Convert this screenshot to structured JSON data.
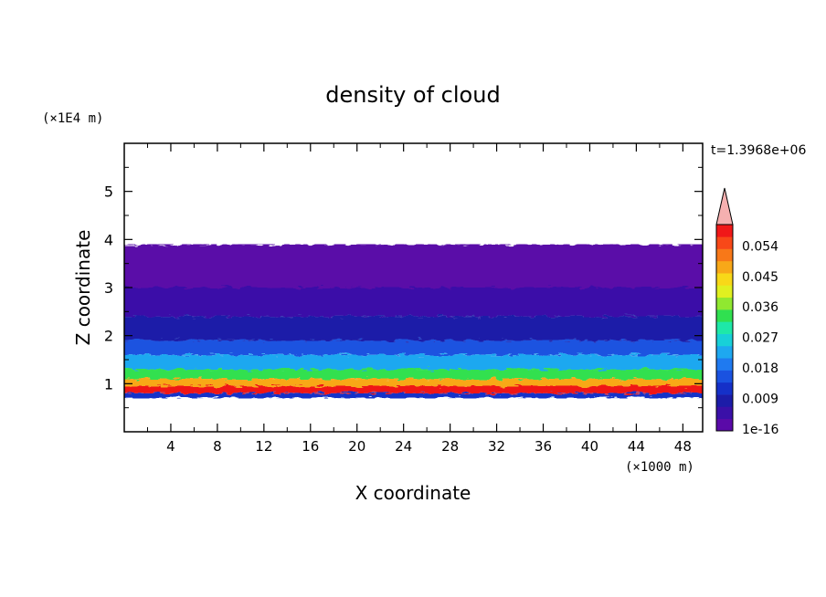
{
  "chart_data": {
    "type": "heatmap",
    "title": "density of cloud",
    "xlabel": "X coordinate",
    "ylabel": "Z coordinate",
    "x_unit": "(×1000 m)",
    "y_unit": "(×1E4 m)",
    "time_label": "t=1.3968e+06",
    "xlim": [
      0,
      49.7
    ],
    "ylim": [
      0,
      6
    ],
    "x_ticks": [
      "4",
      "8",
      "12",
      "16",
      "20",
      "24",
      "28",
      "32",
      "36",
      "40",
      "44",
      "48"
    ],
    "y_ticks": [
      "1",
      "2",
      "3",
      "4",
      "5"
    ],
    "colorbar": {
      "levels": [
        "1e-16",
        "0.009",
        "0.018",
        "0.027",
        "0.036",
        "0.045",
        "0.054"
      ],
      "colors": [
        "#5a0aa8",
        "#3a10a8",
        "#1c1ca8",
        "#1530c8",
        "#1a52e0",
        "#1f7af0",
        "#1ea8f0",
        "#18d0d8",
        "#1ee8a8",
        "#30e050",
        "#90e830",
        "#e0f020",
        "#f8d818",
        "#f8a818",
        "#f87818",
        "#f84818",
        "#f01818",
        "#f5b0b0"
      ],
      "extend": "max"
    },
    "bands": [
      {
        "z_bottom": 3.0,
        "z_top": 3.9,
        "density": "1e-16",
        "color": "#5a0aa8"
      },
      {
        "z_bottom": 2.4,
        "z_top": 3.0,
        "density": "0.003",
        "color": "#3a10a8"
      },
      {
        "z_bottom": 1.9,
        "z_top": 2.4,
        "density": "0.008",
        "color": "#1c1ca8"
      },
      {
        "z_bottom": 1.6,
        "z_top": 1.9,
        "density": "0.015",
        "color": "#1a52e0"
      },
      {
        "z_bottom": 1.3,
        "z_top": 1.6,
        "density": "0.024",
        "color": "#1ea8f0"
      },
      {
        "z_bottom": 1.1,
        "z_top": 1.3,
        "density": "0.036",
        "color": "#30e050"
      },
      {
        "z_bottom": 0.95,
        "z_top": 1.1,
        "density": "0.047",
        "color": "#f8a818"
      },
      {
        "z_bottom": 0.8,
        "z_top": 0.95,
        "density": "0.057",
        "color": "#f01818"
      },
      {
        "z_bottom": 0.7,
        "z_top": 0.8,
        "density": "0.012",
        "color": "#1530c8"
      }
    ]
  }
}
